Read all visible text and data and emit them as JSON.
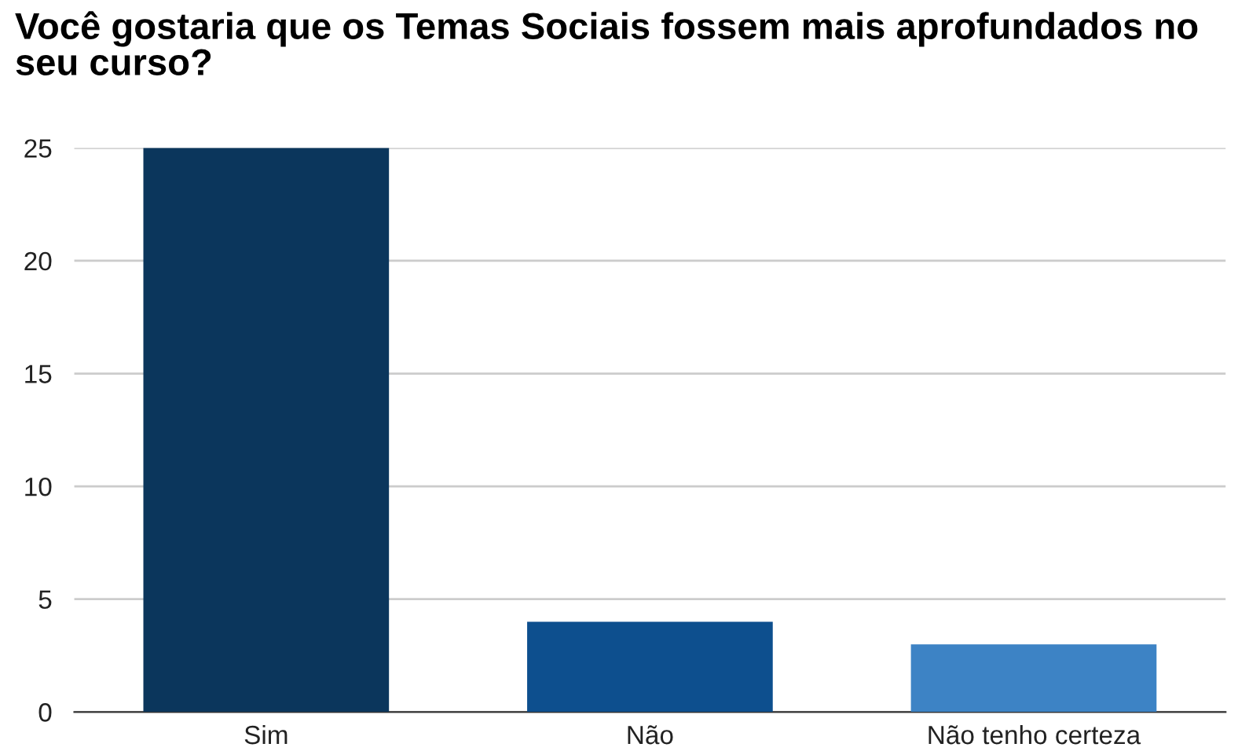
{
  "chart_data": {
    "type": "bar",
    "title": "Você gostaria que os Temas Sociais fossem mais aprofundados no seu curso?",
    "categories": [
      "Sim",
      "Não",
      "Não tenho certeza"
    ],
    "values": [
      25,
      4,
      3
    ],
    "colors": [
      "#0b365c",
      "#0d4f8e",
      "#3d83c5"
    ],
    "ylim": [
      0,
      25
    ],
    "yticks": [
      0,
      5,
      10,
      15,
      20,
      25
    ],
    "grid": "y"
  }
}
